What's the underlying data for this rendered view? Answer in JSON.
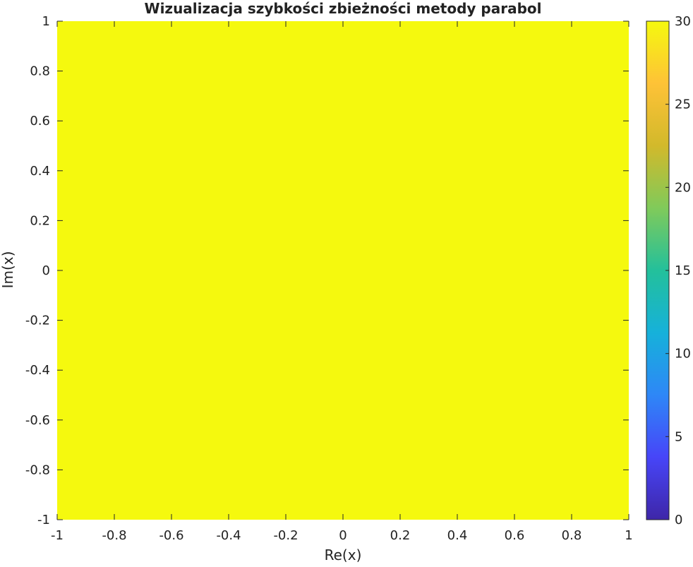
{
  "chart_data": {
    "type": "heatmap",
    "title": "Wizualizacja szybkości zbieżności metody parabol",
    "xlabel": "Re(x)",
    "ylabel": "Im(x)",
    "xlim": [
      -1,
      1
    ],
    "ylim": [
      -1,
      1
    ],
    "x_ticks": [
      "-1",
      "-0.8",
      "-0.6",
      "-0.4",
      "-0.2",
      "0",
      "0.2",
      "0.4",
      "0.6",
      "0.8",
      "1"
    ],
    "y_ticks": [
      "1",
      "0.8",
      "0.6",
      "0.4",
      "0.2",
      "0",
      "-0.2",
      "-0.4",
      "-0.6",
      "-0.8",
      "-1"
    ],
    "values": [
      [
        30
      ]
    ],
    "colorbar": {
      "range": [
        0,
        30
      ],
      "ticks": [
        "0",
        "5",
        "10",
        "15",
        "20",
        "25",
        "30"
      ],
      "colormap": [
        "#3e26a8",
        "#4745f8",
        "#2e87f7",
        "#16b1da",
        "#23c09b",
        "#80ca5a",
        "#d2b92b",
        "#fec237",
        "#f5f90e"
      ]
    },
    "grid": false,
    "fill_color": "#f5f90e"
  }
}
